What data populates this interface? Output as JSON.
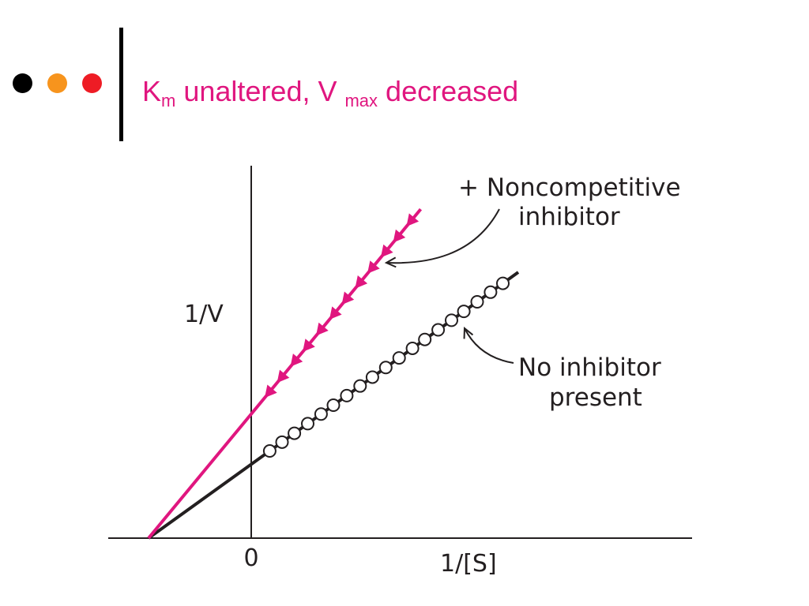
{
  "header": {
    "title_km_main": "K",
    "title_km_sub": "m",
    "title_mid": " unaltered, V ",
    "title_vmax_sub": "max",
    "title_end": " decreased",
    "title_color": "#e0167f",
    "bullet_colors": [
      "#000000",
      "#f7941d",
      "#ee1c25"
    ]
  },
  "chart_data": {
    "type": "line",
    "title": "",
    "xlabel": "1/[S]",
    "ylabel": "1/V",
    "x_ticks": [
      "0"
    ],
    "xlim": [
      -1,
      3.2
    ],
    "ylim": [
      0,
      3.5
    ],
    "series": [
      {
        "name": "No inhibitor present",
        "color": "#231f20",
        "marker": "open-circle",
        "intercept": 0.72,
        "slope": 0.72,
        "line_x_range": [
          -1,
          2.6
        ],
        "points_x": [
          0.18,
          0.3,
          0.42,
          0.55,
          0.68,
          0.8,
          0.93,
          1.06,
          1.18,
          1.31,
          1.44,
          1.57,
          1.69,
          1.82,
          1.95,
          2.07,
          2.2,
          2.33,
          2.45
        ]
      },
      {
        "name": "+ Noncompetitive inhibitor",
        "color": "#e0167f",
        "marker": "filled-arrow",
        "intercept": 1.21,
        "slope": 1.21,
        "line_x_range": [
          -1,
          1.65
        ],
        "points_x": [
          0.17,
          0.29,
          0.42,
          0.54,
          0.67,
          0.8,
          0.92,
          1.05,
          1.17,
          1.3,
          1.42,
          1.55
        ]
      }
    ],
    "annotations": [
      {
        "text_line1": "+ Noncompetitive",
        "text_line2": "inhibitor",
        "series": "+ Noncompetitive inhibitor"
      },
      {
        "text_line1": "No inhibitor",
        "text_line2": "present",
        "series": "No inhibitor present"
      }
    ]
  }
}
